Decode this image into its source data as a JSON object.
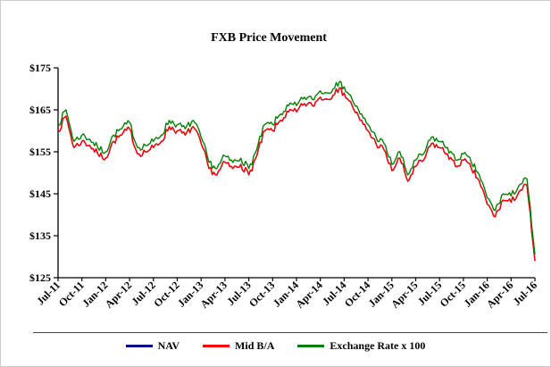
{
  "page": {
    "background": "#ffffff"
  },
  "chart_data": {
    "type": "line",
    "title": "FXB Price Movement",
    "xlabel": "",
    "ylabel": "",
    "ylim": [
      125,
      175
    ],
    "yticks": [
      125,
      135,
      145,
      155,
      165,
      175
    ],
    "ytick_labels": [
      "$125",
      "$135",
      "$145",
      "$155",
      "$165",
      "$175"
    ],
    "x_tick_labels": [
      "Jul-11",
      "Oct-11",
      "Jan-12",
      "Apr-12",
      "Jul-12",
      "Oct-12",
      "Jan-13",
      "Apr-13",
      "Jul-13",
      "Oct-13",
      "Jan-14",
      "Apr-14",
      "Jul-14",
      "Oct-14",
      "Jan-15",
      "Apr-15",
      "Jul-15",
      "Oct-15",
      "Jan-16",
      "Apr-16",
      "Jul-16"
    ],
    "tick_interval": 3,
    "grid": false,
    "legend_position": "bottom",
    "series": [
      {
        "name": "NAV",
        "color": "#000080",
        "values": [
          160,
          163.5,
          156,
          157.5,
          156.5,
          154.5,
          153.5,
          157.5,
          159,
          160.5,
          154.5,
          155,
          156,
          157.5,
          161,
          160,
          159,
          161,
          157,
          151,
          149.5,
          152.5,
          151,
          152,
          149.5,
          154,
          160,
          160,
          162.5,
          164.5,
          164.5,
          166.5,
          166,
          168,
          167.5,
          170,
          169,
          166,
          162.5,
          160,
          157,
          155.5,
          150.5,
          153.5,
          148,
          151.5,
          153,
          157,
          156,
          154.5,
          151.5,
          153,
          151,
          148,
          142.5,
          139.5,
          143.5,
          143,
          145.5,
          147,
          129
        ]
      },
      {
        "name": "Mid B/A",
        "color": "#FF0000",
        "values": [
          160,
          163.5,
          156,
          157.5,
          156.5,
          154.5,
          153.5,
          157.5,
          159,
          160.5,
          154.5,
          155,
          156,
          157.5,
          161,
          160,
          159,
          161,
          157,
          151,
          149.5,
          152.5,
          151,
          152,
          149.5,
          154,
          160,
          160,
          162.5,
          164.5,
          164.5,
          166.5,
          166,
          168,
          167.5,
          170,
          169,
          166,
          162.5,
          160,
          157,
          155.5,
          150.5,
          153.5,
          148,
          151.5,
          153,
          157,
          156,
          154.5,
          151.5,
          153,
          151,
          148,
          142.5,
          139.5,
          143.5,
          143,
          145.5,
          147,
          129
        ]
      },
      {
        "name": "Exchange Rate x 100",
        "color": "#008000",
        "values": [
          161.5,
          165,
          157.5,
          159,
          158,
          156,
          155,
          159,
          160.5,
          162,
          156,
          156.5,
          157.5,
          159,
          162.5,
          161.5,
          160.5,
          162.5,
          158.5,
          152.5,
          151,
          154,
          152.5,
          153.5,
          151,
          155.5,
          161.5,
          161.5,
          164,
          166,
          166,
          168,
          167.5,
          169.5,
          169,
          171.5,
          170.5,
          167.5,
          164,
          161.5,
          158.5,
          157,
          152,
          155,
          149.5,
          153,
          154.5,
          158.5,
          157.5,
          156,
          153,
          154.5,
          152.5,
          149.5,
          144,
          141,
          145,
          144.5,
          147,
          148.5,
          130.5
        ]
      }
    ]
  }
}
